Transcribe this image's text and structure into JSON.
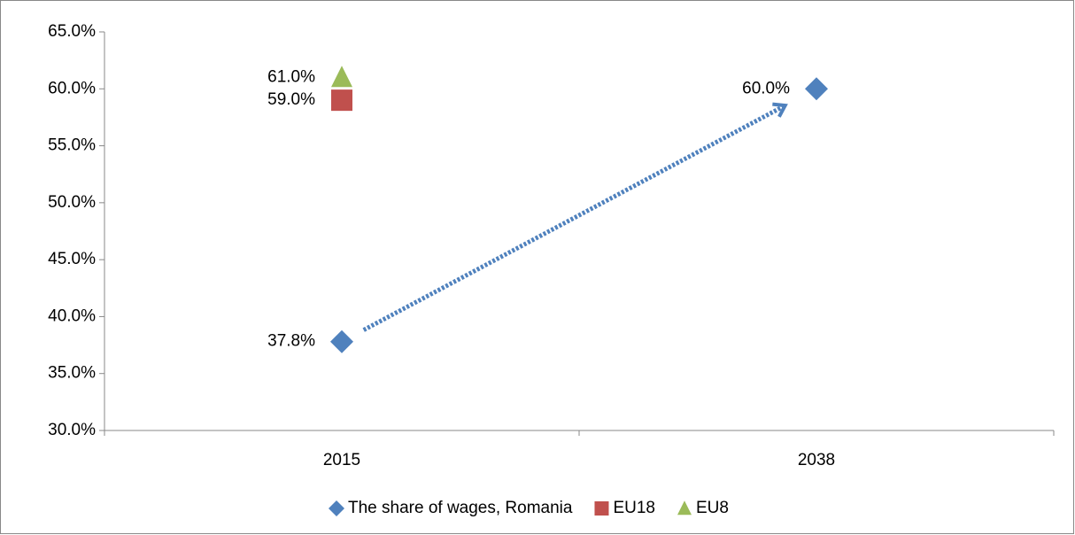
{
  "chart_data": {
    "type": "scatter",
    "categories": [
      "2015",
      "2038"
    ],
    "series": [
      {
        "name": "The share of wages, Romania",
        "color": "#4f81bd",
        "marker": "diamond",
        "values": [
          37.8,
          60.0
        ],
        "value_labels": [
          "37.8%",
          "60.0%"
        ]
      },
      {
        "name": "EU18",
        "color": "#c0504d",
        "marker": "square",
        "values": [
          59.0,
          null
        ],
        "value_labels": [
          "59.0%",
          null
        ]
      },
      {
        "name": "EU8",
        "color": "#9bbb59",
        "marker": "triangle",
        "values": [
          61.0,
          null
        ],
        "value_labels": [
          "61.0%",
          null
        ]
      }
    ],
    "ylim": [
      30,
      65
    ],
    "yticks": [
      {
        "value": 30,
        "label": "30.0%"
      },
      {
        "value": 35,
        "label": "35.0%"
      },
      {
        "value": 40,
        "label": "40.0%"
      },
      {
        "value": 45,
        "label": "45.0%"
      },
      {
        "value": 50,
        "label": "50.0%"
      },
      {
        "value": 55,
        "label": "55.0%"
      },
      {
        "value": 60,
        "label": "60.0%"
      },
      {
        "value": 65,
        "label": "65.0%"
      }
    ],
    "grid": false,
    "legend": "bottom"
  }
}
